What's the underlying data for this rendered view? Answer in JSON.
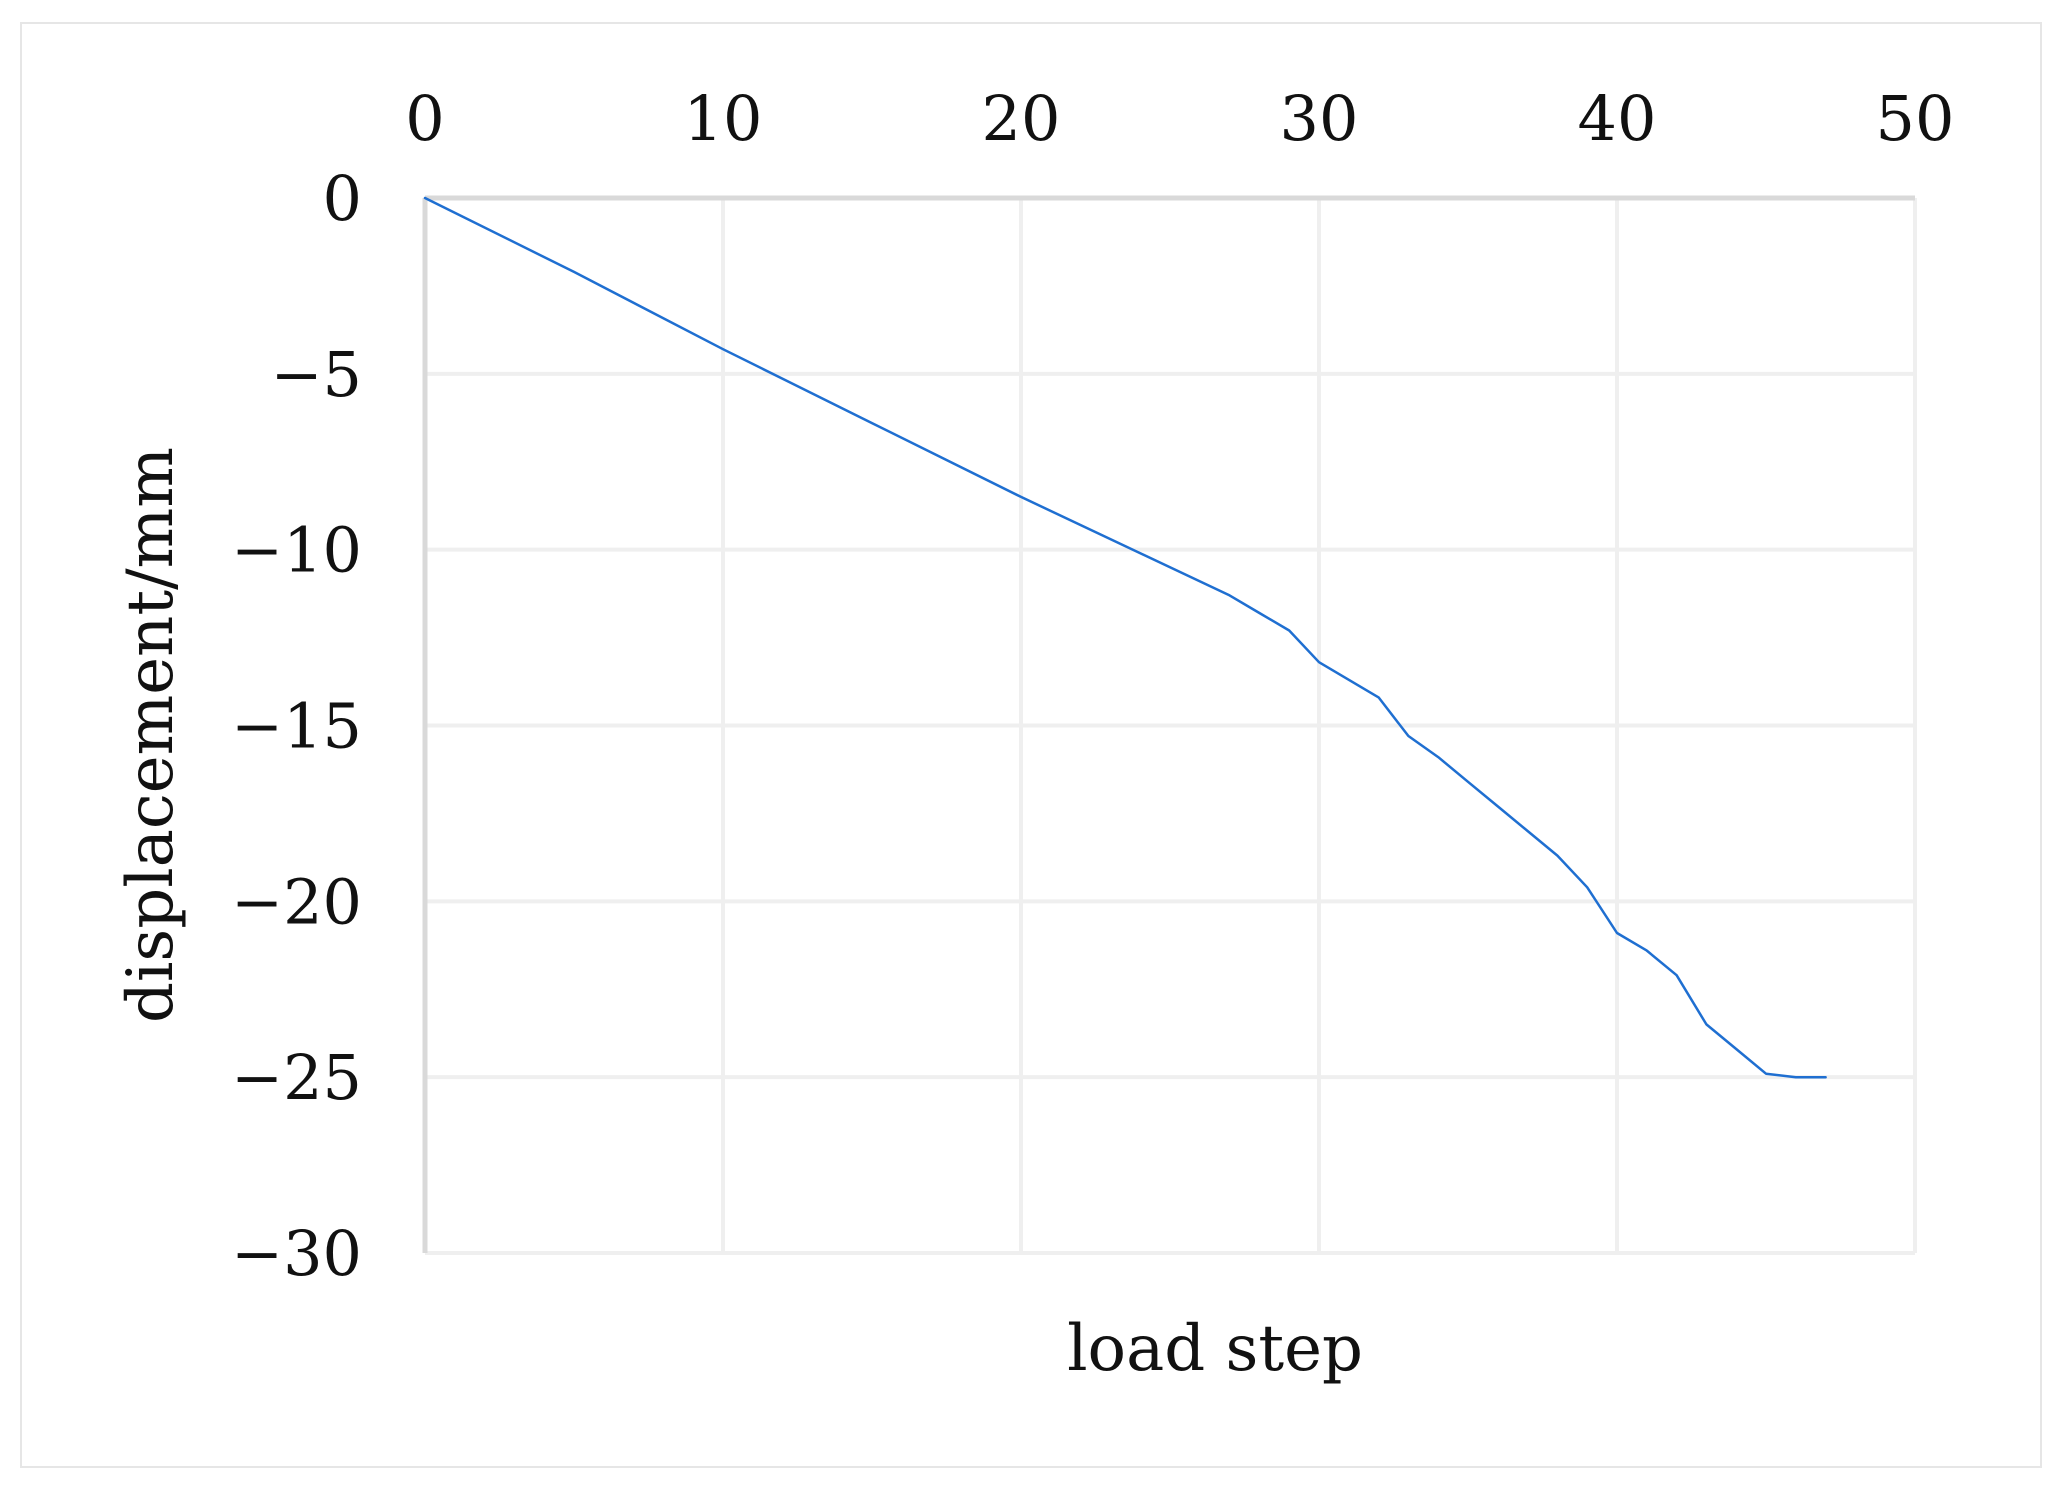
{
  "chart_data": {
    "type": "line",
    "title": "",
    "xlabel": "load step",
    "ylabel": "displacement/mm",
    "xlim": [
      0,
      50
    ],
    "ylim": [
      -30,
      0
    ],
    "x_axis_position": "top",
    "x_ticks": [
      0,
      10,
      20,
      30,
      40,
      50
    ],
    "y_ticks": [
      0,
      -5,
      -10,
      -15,
      -20,
      -25,
      -30
    ],
    "x_tick_labels": [
      "0",
      "10",
      "20",
      "30",
      "40",
      "50"
    ],
    "y_tick_labels": [
      "0",
      "−5",
      "−10",
      "−15",
      "−20",
      "−25",
      "−30"
    ],
    "grid": true,
    "legend": "none",
    "series": [
      {
        "color": "#1f6fd1",
        "x": [
          0,
          5,
          10,
          15,
          20,
          25,
          27,
          28,
          29,
          30,
          31,
          32,
          33,
          34,
          35,
          36,
          37,
          38,
          39,
          40,
          41,
          42,
          43,
          44,
          45,
          46,
          47
        ],
        "y": [
          0,
          -2.1,
          -4.3,
          -6.4,
          -8.5,
          -10.5,
          -11.3,
          -11.8,
          -12.3,
          -13.2,
          -13.7,
          -14.2,
          -15.3,
          -15.9,
          -16.6,
          -17.3,
          -18.0,
          -18.7,
          -19.6,
          -20.9,
          -21.4,
          -22.1,
          -23.5,
          -24.2,
          -24.9,
          -25.0,
          -25.0
        ]
      }
    ]
  }
}
